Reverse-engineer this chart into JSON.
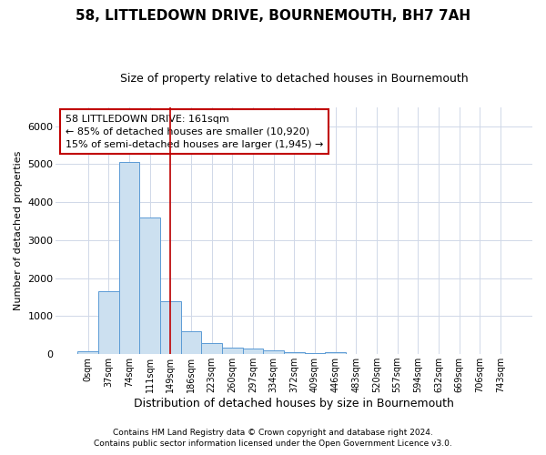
{
  "title": "58, LITTLEDOWN DRIVE, BOURNEMOUTH, BH7 7AH",
  "subtitle": "Size of property relative to detached houses in Bournemouth",
  "xlabel": "Distribution of detached houses by size in Bournemouth",
  "ylabel": "Number of detached properties",
  "bar_labels": [
    "0sqm",
    "37sqm",
    "74sqm",
    "111sqm",
    "149sqm",
    "186sqm",
    "223sqm",
    "260sqm",
    "297sqm",
    "334sqm",
    "372sqm",
    "409sqm",
    "446sqm",
    "483sqm",
    "520sqm",
    "557sqm",
    "594sqm",
    "632sqm",
    "669sqm",
    "706sqm",
    "743sqm"
  ],
  "bar_values": [
    70,
    1650,
    5050,
    3600,
    1400,
    610,
    300,
    160,
    140,
    100,
    50,
    30,
    60,
    0,
    0,
    0,
    0,
    0,
    0,
    0,
    0
  ],
  "bar_color": "#cce0f0",
  "bar_edge_color": "#5b9bd5",
  "vline_x": 4.0,
  "vline_color": "#c00000",
  "annotation_line1": "58 LITTLEDOWN DRIVE: 161sqm",
  "annotation_line2": "← 85% of detached houses are smaller (10,920)",
  "annotation_line3": "15% of semi-detached houses are larger (1,945) →",
  "annotation_box_color": "#ffffff",
  "annotation_box_edge": "#c00000",
  "background_color": "#ffffff",
  "grid_color": "#d0d8e8",
  "ylim": [
    0,
    6500
  ],
  "footnote1": "Contains HM Land Registry data © Crown copyright and database right 2024.",
  "footnote2": "Contains public sector information licensed under the Open Government Licence v3.0.",
  "title_fontsize": 11,
  "subtitle_fontsize": 9,
  "ylabel_fontsize": 8,
  "xlabel_fontsize": 9,
  "tick_fontsize": 7,
  "annotation_fontsize": 8,
  "footnote_fontsize": 6.5
}
